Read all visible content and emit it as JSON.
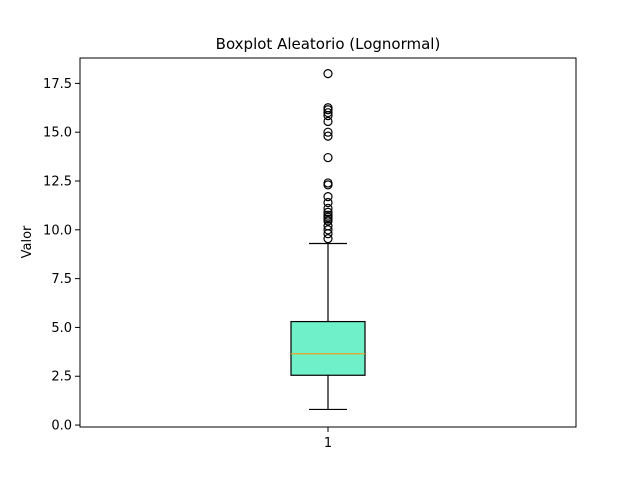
{
  "chart_data": {
    "type": "box",
    "title": "Boxplot Aleatorio (Lognormal)",
    "xlabel": "",
    "ylabel": "Valor",
    "ylim": [
      -0.1,
      18.8
    ],
    "yticks": [
      0.0,
      2.5,
      5.0,
      7.5,
      10.0,
      12.5,
      15.0,
      17.5
    ],
    "ytick_labels": [
      "0.0",
      "2.5",
      "5.0",
      "7.5",
      "10.0",
      "12.5",
      "15.0",
      "17.5"
    ],
    "categories": [
      "1"
    ],
    "boxes": [
      {
        "category": "1",
        "whisker_low": 0.8,
        "q1": 2.55,
        "median": 3.65,
        "q3": 5.3,
        "whisker_high": 9.3,
        "outliers": [
          9.55,
          9.8,
          10.0,
          10.2,
          10.45,
          10.55,
          10.65,
          10.75,
          10.9,
          11.1,
          11.4,
          11.7,
          12.3,
          12.4,
          13.7,
          14.8,
          15.0,
          15.55,
          15.85,
          16.0,
          16.15,
          16.25,
          18.0
        ]
      }
    ],
    "grid": false,
    "colors": {
      "box_fill": "#6ff0c8",
      "box_edge": "#000000",
      "median": "#e8a020",
      "whisker": "#000000",
      "outlier_edge": "#000000"
    }
  }
}
